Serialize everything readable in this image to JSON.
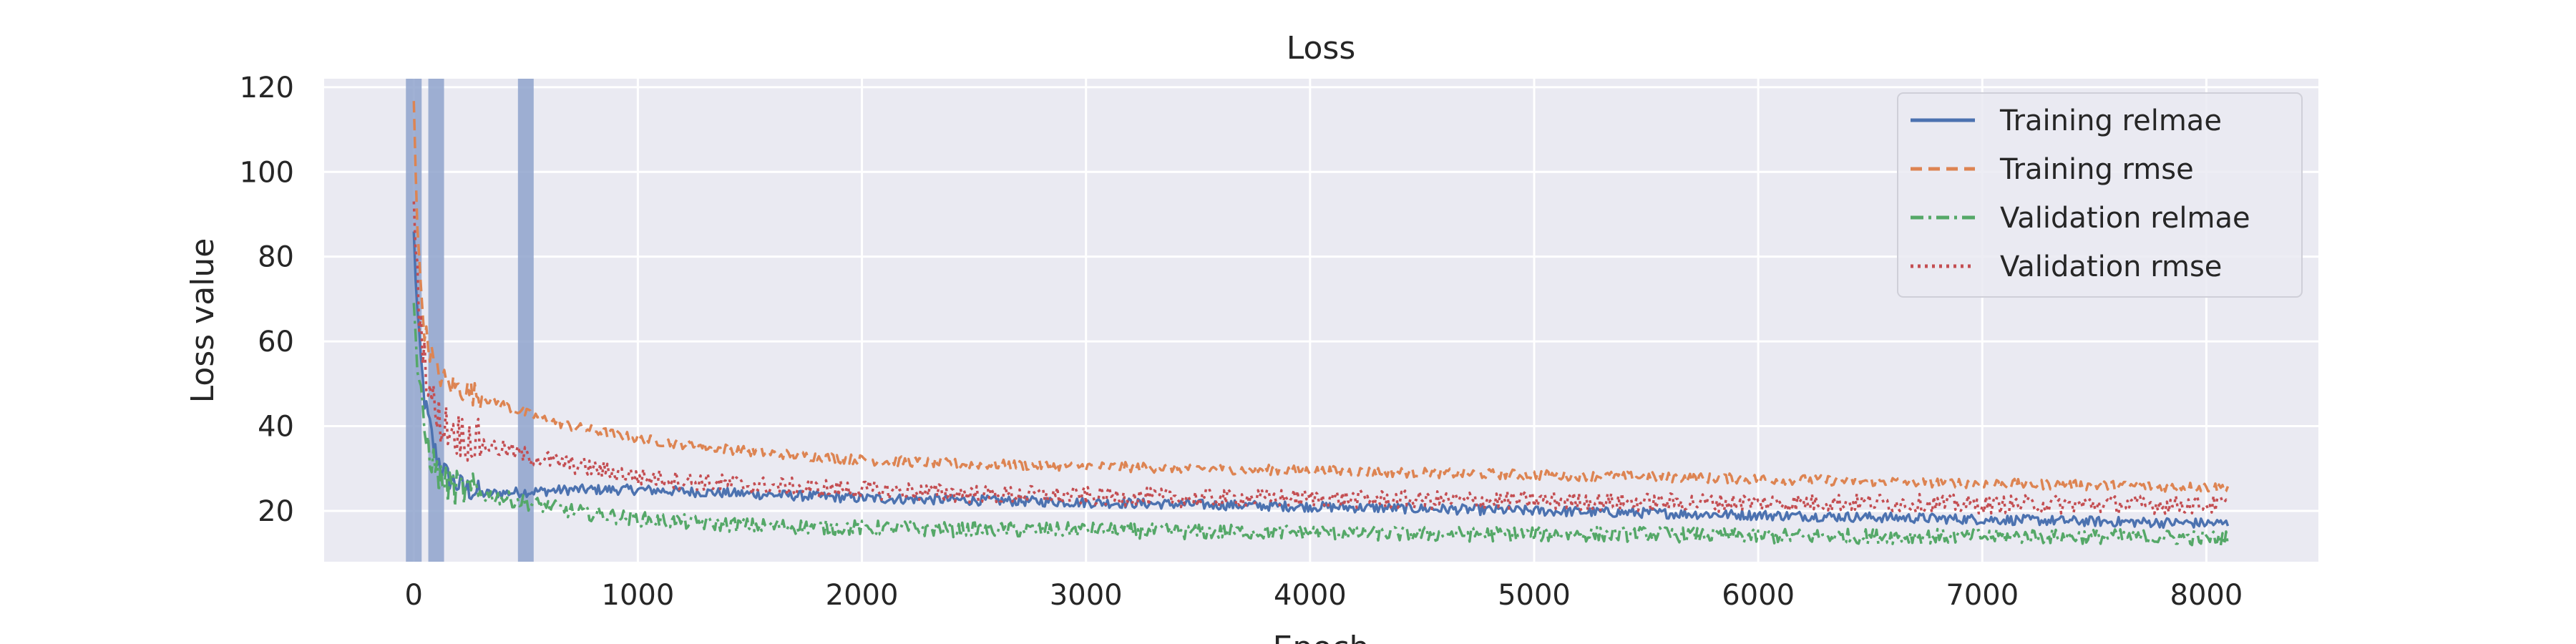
{
  "chart_data": {
    "type": "line",
    "title": "Loss",
    "xlabel": "Epoch",
    "ylabel": "Loss value",
    "xlim": [
      -400,
      8500
    ],
    "ylim": [
      8,
      122
    ],
    "xticks": [
      0,
      1000,
      2000,
      3000,
      4000,
      5000,
      6000,
      7000,
      8000
    ],
    "yticks": [
      20,
      40,
      60,
      80,
      100,
      120
    ],
    "grid": true,
    "legend_position": "top-right",
    "vertical_markers": [
      0,
      100,
      500
    ],
    "colors": {
      "background": "#eaeaf2",
      "grid": "#ffffff",
      "marker": "#8fa3cc"
    },
    "series": [
      {
        "name": "Training relmae",
        "color": "#4c72b0",
        "style": "solid",
        "x": [
          0,
          20,
          50,
          100,
          150,
          200,
          300,
          500,
          700,
          1000,
          1500,
          2000,
          2500,
          3000,
          3500,
          4000,
          4500,
          5000,
          5500,
          6000,
          6500,
          7000,
          7500,
          8100
        ],
        "y": [
          85,
          62,
          45,
          33,
          28,
          26,
          24,
          24.5,
          25,
          25,
          24,
          23,
          22.5,
          22,
          21.5,
          21,
          20.5,
          20,
          19.5,
          19,
          18.5,
          18,
          17.5,
          17
        ]
      },
      {
        "name": "Training rmse",
        "color": "#dd8452",
        "style": "dashed",
        "x": [
          0,
          20,
          50,
          100,
          150,
          200,
          300,
          500,
          700,
          1000,
          1500,
          2000,
          2500,
          3000,
          3500,
          4000,
          4500,
          5000,
          5500,
          6000,
          6500,
          7000,
          7500,
          8100
        ],
        "y": [
          118,
          80,
          62,
          53,
          50,
          49,
          47,
          43,
          40,
          37,
          34,
          32,
          31,
          30.5,
          30,
          29.5,
          29,
          28.5,
          28,
          27.5,
          27,
          26.5,
          26,
          25.5
        ]
      },
      {
        "name": "Validation relmae",
        "color": "#55a868",
        "style": "dashdot",
        "x": [
          0,
          20,
          50,
          100,
          150,
          200,
          300,
          500,
          700,
          1000,
          1500,
          2000,
          2500,
          3000,
          3500,
          4000,
          4500,
          5000,
          5500,
          6000,
          6500,
          7000,
          7500,
          8100
        ],
        "y": [
          70,
          50,
          38,
          29,
          26,
          25,
          24,
          22,
          20,
          18,
          16.5,
          16,
          15.5,
          15.5,
          15,
          15,
          14.5,
          14.5,
          14.5,
          14,
          14,
          14,
          14,
          13.5
        ]
      },
      {
        "name": "Validation rmse",
        "color": "#c44e52",
        "style": "dotted",
        "x": [
          0,
          20,
          50,
          100,
          150,
          200,
          300,
          500,
          700,
          1000,
          1500,
          2000,
          2500,
          3000,
          3500,
          4000,
          4500,
          5000,
          5500,
          6000,
          6500,
          7000,
          7500,
          8100
        ],
        "y": [
          90,
          70,
          55,
          42,
          40,
          38,
          36,
          33,
          31,
          28,
          26,
          25,
          24,
          23.5,
          23,
          23,
          22.5,
          22.5,
          22,
          22,
          22,
          21.5,
          21.5,
          21.5
        ]
      }
    ]
  }
}
